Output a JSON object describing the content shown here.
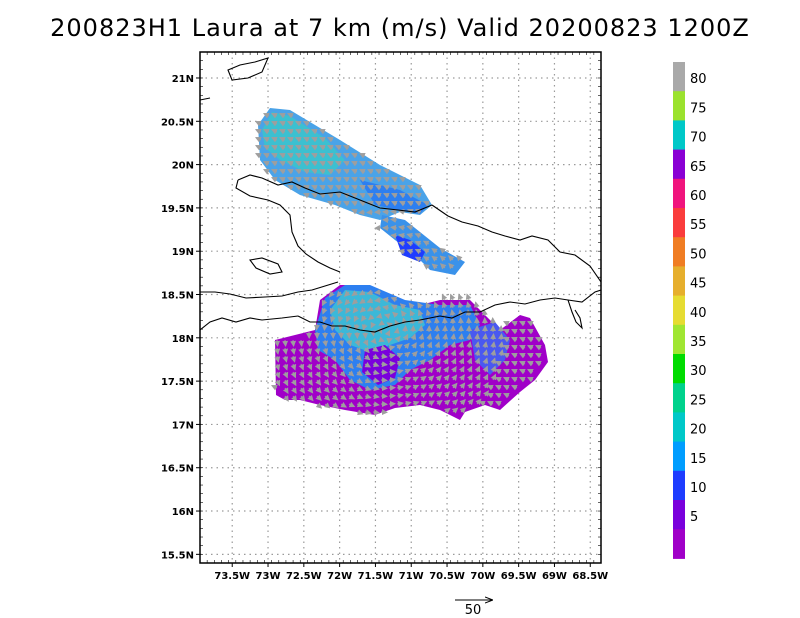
{
  "title": "200823H1 Laura at 7 km (m/s) Valid 20200823 1200Z",
  "map": {
    "lon_range": [
      -73.95,
      -68.35
    ],
    "lat_range": [
      15.4,
      21.3
    ],
    "lat_ticks": [
      "21N",
      "20.5N",
      "20N",
      "19.5N",
      "19N",
      "18.5N",
      "18N",
      "17.5N",
      "17N",
      "16.5N",
      "16N",
      "15.5N"
    ],
    "lat_values": [
      21,
      20.5,
      20,
      19.5,
      19,
      18.5,
      18,
      17.5,
      17,
      16.5,
      16,
      15.5
    ],
    "lon_ticks": [
      "73.5W",
      "73W",
      "72.5W",
      "72W",
      "71.5W",
      "71W",
      "70.5W",
      "70W",
      "69.5W",
      "69W",
      "68.5W"
    ],
    "lon_values": [
      -73.5,
      -73,
      -72.5,
      -72,
      -71.5,
      -71,
      -70.5,
      -70,
      -69.5,
      -69,
      -68.5
    ],
    "grid": "dotted"
  },
  "colorbar": {
    "labels": [
      "80",
      "75",
      "70",
      "65",
      "60",
      "55",
      "50",
      "45",
      "40",
      "35",
      "30",
      "25",
      "20",
      "15",
      "10",
      "5"
    ],
    "colors": [
      "#a9a9a9",
      "#9be22e",
      "#00c8c8",
      "#8a00d4",
      "#f0147d",
      "#fa3c3c",
      "#f07d23",
      "#e6af2d",
      "#e6dc32",
      "#a0e632",
      "#00dc00",
      "#00d28c",
      "#00c8c8",
      "#009dff",
      "#1e3cff",
      "#7a00dc",
      "#a000c8"
    ]
  },
  "reference_vector": {
    "label": "50"
  },
  "legend_position": "right"
}
